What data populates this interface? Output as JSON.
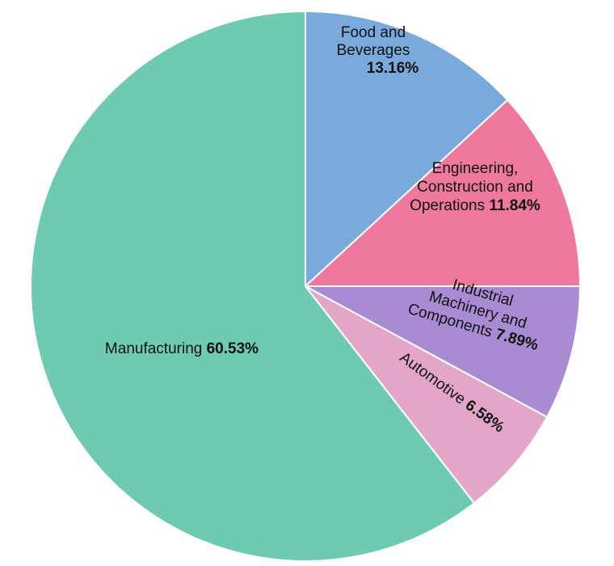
{
  "chart_data": {
    "type": "pie",
    "slices": [
      {
        "label_lines": [
          "Food and",
          "Beverages"
        ],
        "pct_text": "13.16%",
        "value": 13.16,
        "color": "#79aadb"
      },
      {
        "label_lines": [
          "Engineering,",
          "Construction and",
          "Operations"
        ],
        "pct_text": "11.84%",
        "value": 11.84,
        "color": "#ef799e"
      },
      {
        "label_lines": [
          "Industrial",
          "Machinery and",
          "Components"
        ],
        "pct_text": "7.89%",
        "value": 7.89,
        "color": "#a98bd3"
      },
      {
        "label_lines": [
          "Automotive"
        ],
        "pct_text": "6.58%",
        "value": 6.58,
        "color": "#e3a6c9"
      },
      {
        "label_lines": [
          "Manufacturing"
        ],
        "pct_text": "60.53%",
        "value": 60.53,
        "color": "#6ecbb2"
      }
    ]
  }
}
